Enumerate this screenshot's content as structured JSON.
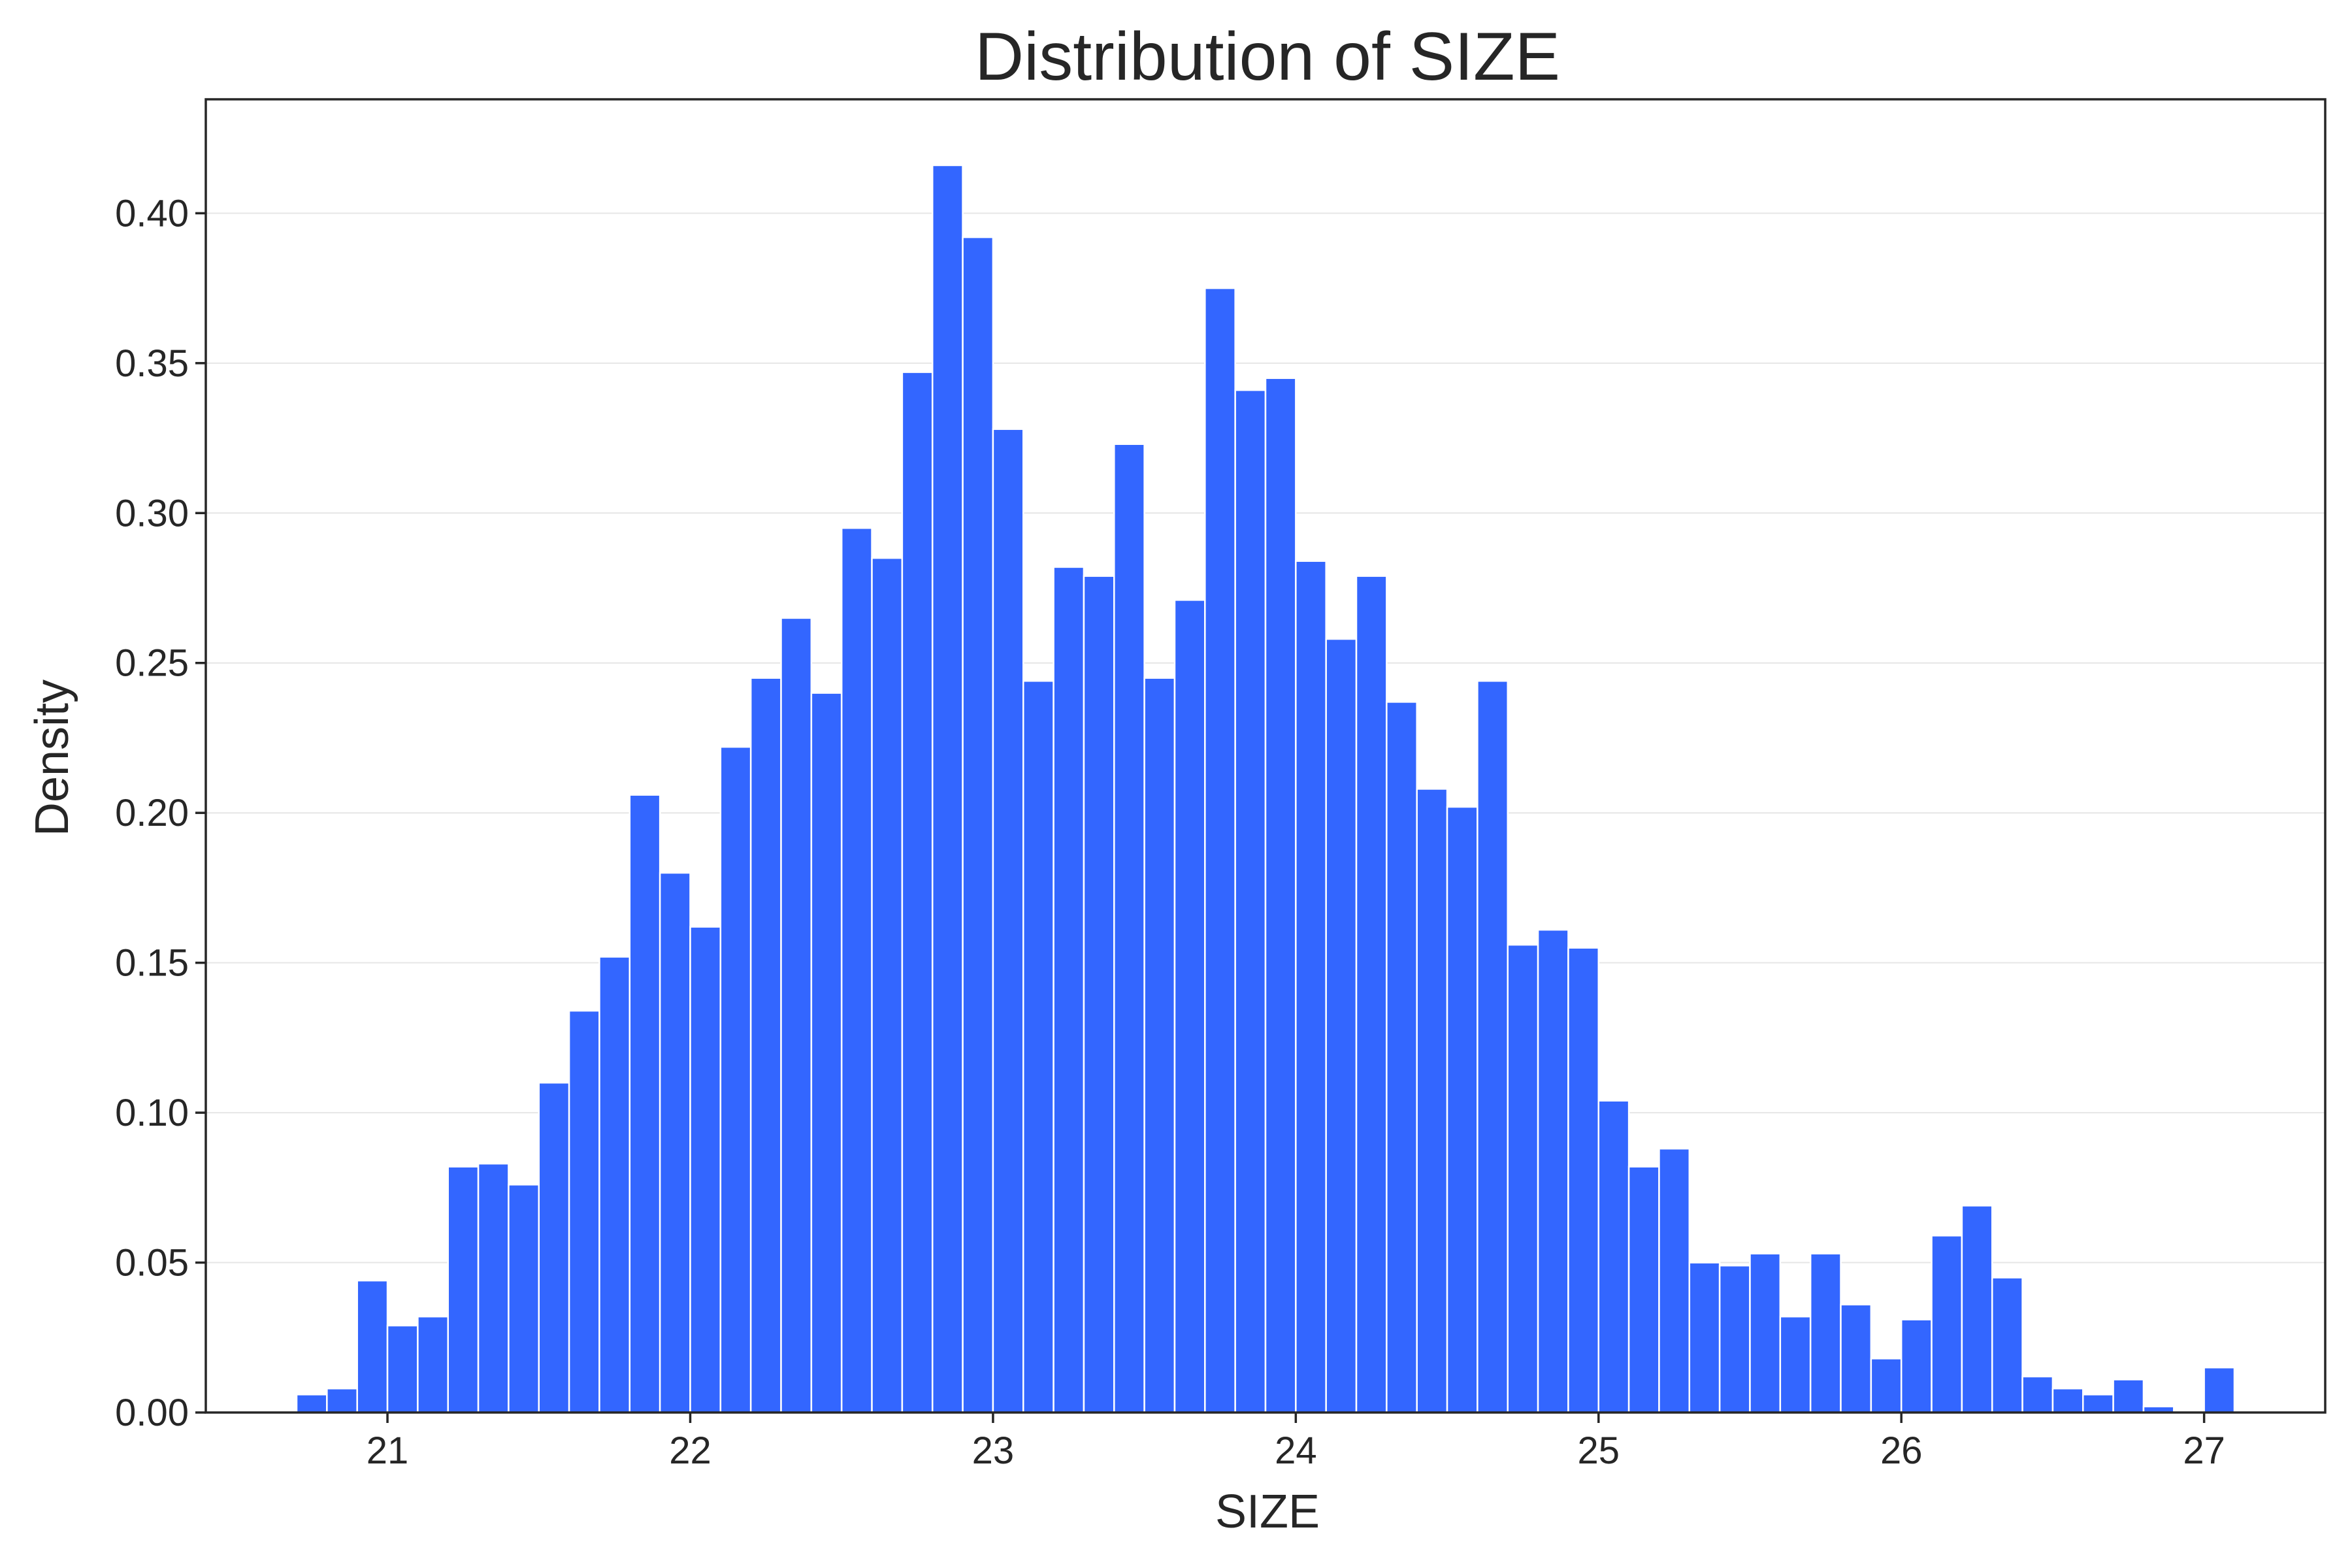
{
  "chart_data": {
    "type": "bar",
    "title": "Distribution of SIZE",
    "xlabel": "SIZE",
    "ylabel": "Density",
    "xlim": [
      20.4,
      27.4
    ],
    "ylim": [
      0,
      0.438
    ],
    "xticks": [
      21,
      22,
      23,
      24,
      25,
      26,
      27
    ],
    "yticks": [
      0.0,
      0.05,
      0.1,
      0.15,
      0.2,
      0.25,
      0.3,
      0.35,
      0.4
    ],
    "ytick_labels": [
      "0.00",
      "0.05",
      "0.10",
      "0.15",
      "0.20",
      "0.25",
      "0.30",
      "0.35",
      "0.40"
    ],
    "grid": "horizontal",
    "bar_color": "#3366ff",
    "bin_start": 20.7,
    "bin_width": 0.1,
    "values": [
      0.006,
      0.008,
      0.044,
      0.029,
      0.032,
      0.082,
      0.083,
      0.076,
      0.11,
      0.134,
      0.152,
      0.206,
      0.18,
      0.162,
      0.222,
      0.245,
      0.265,
      0.24,
      0.295,
      0.285,
      0.347,
      0.416,
      0.392,
      0.328,
      0.244,
      0.282,
      0.279,
      0.323,
      0.245,
      0.271,
      0.375,
      0.341,
      0.345,
      0.284,
      0.258,
      0.279,
      0.237,
      0.208,
      0.202,
      0.244,
      0.156,
      0.161,
      0.155,
      0.104,
      0.082,
      0.088,
      0.05,
      0.049,
      0.053,
      0.032,
      0.053,
      0.036,
      0.018,
      0.031,
      0.059,
      0.069,
      0.045,
      0.012,
      0.008,
      0.006,
      0.011,
      0.002,
      0.0,
      0.015
    ]
  }
}
